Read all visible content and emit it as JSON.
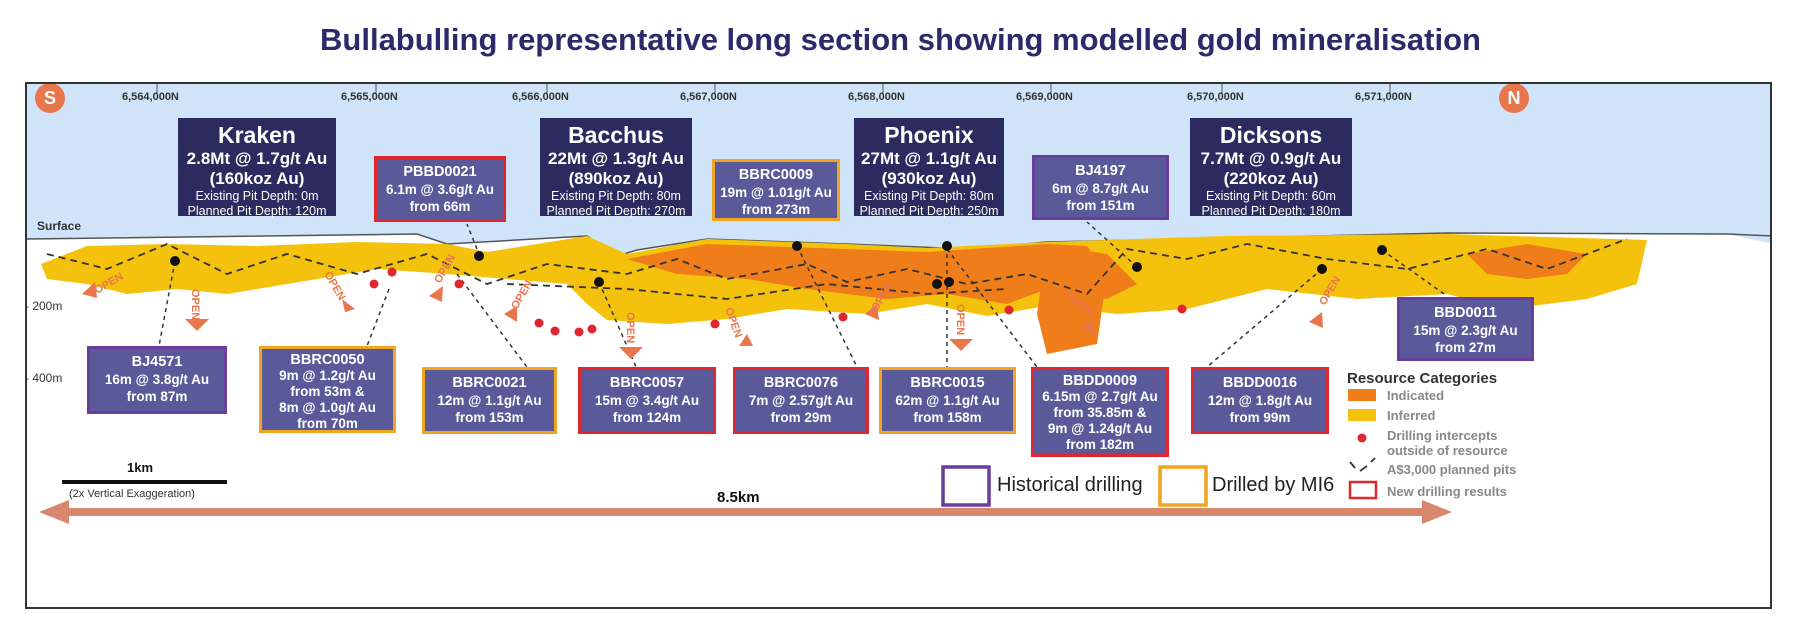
{
  "title": "Bullabulling representative long section showing modelled gold mineralisation",
  "compass": {
    "south": "S",
    "north": "N"
  },
  "northings": [
    "6,564,000N",
    "6,565,000N",
    "6,566,000N",
    "6,567,000N",
    "6,568,000N",
    "6,569,000N",
    "6,570,000N",
    "6,571,000N"
  ],
  "surface_label": "Surface",
  "depth_labels": {
    "d200": "- 200m",
    "d400": "- 400m"
  },
  "open_label": "OPEN",
  "pits": [
    {
      "name": "Kraken",
      "resource": "2.8Mt @ 1.7g/t Au",
      "koz": "(160koz Au)",
      "existing": "Existing Pit Depth: 0m",
      "planned": "Planned Pit Depth: 120m"
    },
    {
      "name": "Bacchus",
      "resource": "22Mt @ 1.3g/t Au",
      "koz": "(890koz Au)",
      "existing": "Existing Pit Depth: 80m",
      "planned": "Planned Pit Depth: 270m"
    },
    {
      "name": "Phoenix",
      "resource": "27Mt @ 1.1g/t Au",
      "koz": "(930koz Au)",
      "existing": "Existing Pit Depth: 80m",
      "planned": "Planned Pit Depth: 250m"
    },
    {
      "name": "Dicksons",
      "resource": "7.7Mt @ 0.9g/t Au",
      "koz": "(220koz Au)",
      "existing": "Existing Pit Depth: 60m",
      "planned": "Planned Pit Depth: 180m"
    }
  ],
  "holes": [
    {
      "id": "PBBD0021",
      "l1": "6.1m @ 3.6g/t Au",
      "l2": "from 66m",
      "l3": "",
      "l4": "",
      "type": "red"
    },
    {
      "id": "BBRC0009",
      "l1": "19m @ 1.01g/t Au",
      "l2": "from 273m",
      "l3": "",
      "l4": "",
      "type": "gold"
    },
    {
      "id": "BJ4197",
      "l1": "6m @ 8.7g/t Au",
      "l2": "from 151m",
      "l3": "",
      "l4": "",
      "type": "purple"
    },
    {
      "id": "BBD0011",
      "l1": "15m @ 2.3g/t Au",
      "l2": "from 27m",
      "l3": "",
      "l4": "",
      "type": "purple"
    },
    {
      "id": "BJ4571",
      "l1": "16m @ 3.8g/t Au",
      "l2": "from 87m",
      "l3": "",
      "l4": "",
      "type": "purple"
    },
    {
      "id": "BBRC0050",
      "l1": "9m @ 1.2g/t Au",
      "l2": "from 53m &",
      "l3": "8m @ 1.0g/t Au",
      "l4": "from 70m",
      "type": "gold"
    },
    {
      "id": "BBRC0021",
      "l1": "12m @ 1.1g/t Au",
      "l2": "from 153m",
      "l3": "",
      "l4": "",
      "type": "gold"
    },
    {
      "id": "BBRC0057",
      "l1": "15m @ 3.4g/t Au",
      "l2": "from 124m",
      "l3": "",
      "l4": "",
      "type": "red"
    },
    {
      "id": "BBRC0076",
      "l1": "7m @ 2.57g/t Au",
      "l2": "from 29m",
      "l3": "",
      "l4": "",
      "type": "red"
    },
    {
      "id": "BBRC0015",
      "l1": "62m @ 1.1g/t Au",
      "l2": "from 158m",
      "l3": "",
      "l4": "",
      "type": "gold"
    },
    {
      "id": "BBDD0009",
      "l1": "6.15m @ 2.7g/t Au",
      "l2": "from 35.85m &",
      "l3": "9m @ 1.24g/t Au",
      "l4": "from 182m",
      "type": "red"
    },
    {
      "id": "BBDD0016",
      "l1": "12m @ 1.8g/t Au",
      "l2": "from 99m",
      "l3": "",
      "l4": "",
      "type": "red"
    }
  ],
  "legend": {
    "title": "Resource Categories",
    "indicated": "Indicated",
    "inferred": "Inferred",
    "intercepts_1": "Drilling intercepts",
    "intercepts_2": "outside of resource",
    "pits": "A$3,000 planned pits",
    "new": "New drilling results"
  },
  "key": {
    "historical": "Historical drilling",
    "mi6": "Drilled by MI6"
  },
  "scale": {
    "label": "1km",
    "note": "(2x Vertical Exaggeration)"
  },
  "extent_label": "8.5km",
  "colors": {
    "indicated": "#ef7d1a",
    "inferred": "#f4c20d",
    "sky": "#cfe4f8",
    "pit_box": "#2c2b60",
    "hole_box": "#5a5a9a",
    "red": "#e0262f",
    "purple": "#6a3c9c",
    "gold": "#f0a420",
    "arrow": "#d9876c"
  }
}
